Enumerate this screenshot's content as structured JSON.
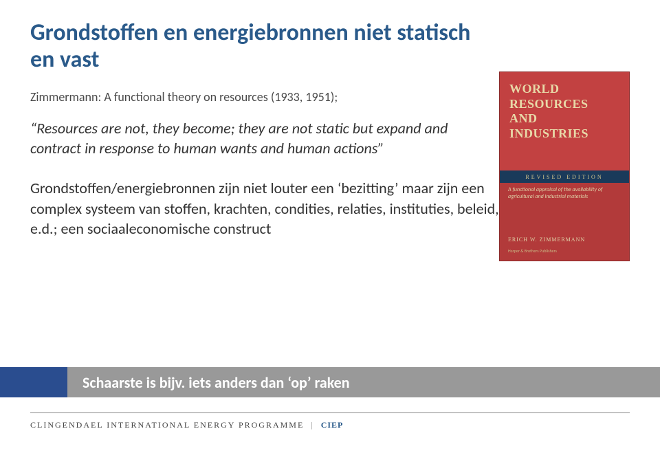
{
  "title_color": "#2a5a8a",
  "subtitle_color": "#4a4a4a",
  "body_color": "#333333",
  "title_line1": "Grondstoffen en energiebronnen niet statisch",
  "title_line2": "en vast",
  "subtitle": "Zimmermann: A functional theory on resources (1933, 1951);",
  "quote": "“Resources are not, they become; they are not static but expand and contract in response to human wants and human actions”",
  "paragraph": "Grondstoffen/energiebronnen zijn niet louter een ‘bezitting’ maar zijn een complex systeem van stoffen, krachten, condities, relaties, instituties, beleid, e.d.; een sociaaleconomische construct",
  "book": {
    "title_l1": "WORLD",
    "title_l2": "RESOURCES",
    "title_l3": "AND",
    "title_l4": "INDUSTRIES",
    "band": "REVISED EDITION",
    "mid": "A functional appraisal of the availability of agricultural and industrial materials",
    "author": "ERICH W. ZIMMERMANN",
    "pub": "Harper & Brothers Publishers",
    "bg_top": "#c24141",
    "bg_bottom": "#b23a3a",
    "band_bg": "#1a3a5a",
    "text_color": "#e8d9a8"
  },
  "banner": {
    "text": "Schaarste is bijv. iets anders dan ‘op’ raken",
    "left_bg": "#2a4d8f",
    "right_bg": "#999999",
    "text_color": "#ffffff"
  },
  "footer": {
    "org": "CLINGENDAEL INTERNATIONAL ENERGY PROGRAMME",
    "sep": "|",
    "ciep": "CIEP",
    "color": "#444444",
    "ciep_color": "#2a5a8a"
  }
}
